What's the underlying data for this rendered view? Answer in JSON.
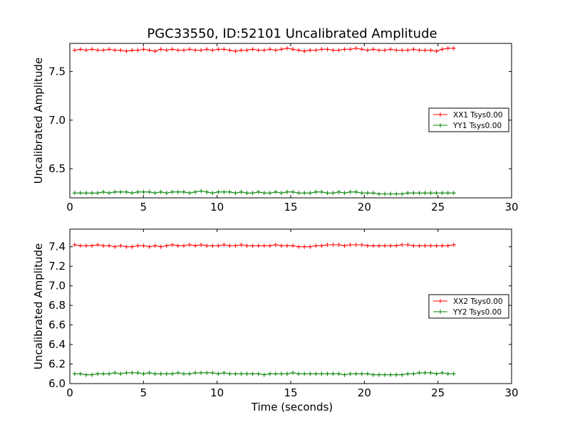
{
  "figure": {
    "title": "PGC33550, ID:52101 Uncalibrated Amplitude",
    "xlabel": "Time (seconds)"
  },
  "chart_data": [
    {
      "type": "line",
      "title": "PGC33550, ID:52101 Uncalibrated Amplitude",
      "xlabel": "",
      "ylabel": "Uncalibrated Amplitude",
      "xlim": [
        0,
        30
      ],
      "ylim": [
        6.2,
        7.79
      ],
      "xticks": [
        0,
        5,
        10,
        15,
        20,
        25,
        30
      ],
      "yticks": [
        6.5,
        7.0,
        7.5
      ],
      "grid": false,
      "legend_position": "center-right",
      "series": [
        {
          "name": "XX1 Tsys0.00",
          "color": "#ff0000",
          "marker": "plus",
          "x": [
            0.33,
            0.72,
            1.11,
            1.5,
            1.89,
            2.28,
            2.67,
            3.06,
            3.45,
            3.84,
            4.23,
            4.62,
            5.01,
            5.4,
            5.79,
            6.18,
            6.57,
            6.96,
            7.35,
            7.74,
            8.13,
            8.52,
            8.91,
            9.3,
            9.69,
            10.08,
            10.47,
            10.86,
            11.25,
            11.64,
            12.03,
            12.42,
            12.81,
            13.2,
            13.59,
            13.98,
            14.37,
            14.76,
            15.15,
            15.54,
            15.93,
            16.32,
            16.71,
            17.1,
            17.49,
            17.88,
            18.27,
            18.66,
            19.05,
            19.44,
            19.83,
            20.22,
            20.61,
            21.0,
            21.39,
            21.78,
            22.17,
            22.56,
            22.95,
            23.34,
            23.73,
            24.12,
            24.51,
            24.9,
            25.29,
            25.68,
            26.07
          ],
          "y": [
            7.72,
            7.73,
            7.72,
            7.73,
            7.72,
            7.72,
            7.73,
            7.72,
            7.72,
            7.71,
            7.72,
            7.72,
            7.73,
            7.72,
            7.71,
            7.73,
            7.72,
            7.73,
            7.72,
            7.72,
            7.73,
            7.72,
            7.72,
            7.73,
            7.72,
            7.73,
            7.73,
            7.72,
            7.71,
            7.72,
            7.72,
            7.73,
            7.72,
            7.72,
            7.73,
            7.72,
            7.73,
            7.74,
            7.73,
            7.72,
            7.71,
            7.72,
            7.72,
            7.73,
            7.73,
            7.72,
            7.72,
            7.73,
            7.73,
            7.74,
            7.73,
            7.72,
            7.73,
            7.72,
            7.72,
            7.73,
            7.72,
            7.72,
            7.72,
            7.73,
            7.72,
            7.72,
            7.72,
            7.71,
            7.73,
            7.74,
            7.74
          ]
        },
        {
          "name": "YY1 Tsys0.00",
          "color": "#008000",
          "marker": "plus",
          "x": [
            0.33,
            0.72,
            1.11,
            1.5,
            1.89,
            2.28,
            2.67,
            3.06,
            3.45,
            3.84,
            4.23,
            4.62,
            5.01,
            5.4,
            5.79,
            6.18,
            6.57,
            6.96,
            7.35,
            7.74,
            8.13,
            8.52,
            8.91,
            9.3,
            9.69,
            10.08,
            10.47,
            10.86,
            11.25,
            11.64,
            12.03,
            12.42,
            12.81,
            13.2,
            13.59,
            13.98,
            14.37,
            14.76,
            15.15,
            15.54,
            15.93,
            16.32,
            16.71,
            17.1,
            17.49,
            17.88,
            18.27,
            18.66,
            19.05,
            19.44,
            19.83,
            20.22,
            20.61,
            21.0,
            21.39,
            21.78,
            22.17,
            22.56,
            22.95,
            23.34,
            23.73,
            24.12,
            24.51,
            24.9,
            25.29,
            25.68,
            26.07
          ],
          "y": [
            6.25,
            6.25,
            6.25,
            6.25,
            6.25,
            6.26,
            6.25,
            6.26,
            6.26,
            6.26,
            6.25,
            6.26,
            6.26,
            6.26,
            6.25,
            6.26,
            6.25,
            6.26,
            6.26,
            6.26,
            6.25,
            6.26,
            6.27,
            6.26,
            6.25,
            6.26,
            6.26,
            6.26,
            6.25,
            6.26,
            6.25,
            6.25,
            6.26,
            6.25,
            6.25,
            6.26,
            6.25,
            6.26,
            6.26,
            6.25,
            6.25,
            6.25,
            6.26,
            6.26,
            6.25,
            6.25,
            6.26,
            6.25,
            6.26,
            6.26,
            6.25,
            6.25,
            6.25,
            6.24,
            6.24,
            6.24,
            6.24,
            6.24,
            6.25,
            6.25,
            6.25,
            6.25,
            6.25,
            6.25,
            6.25,
            6.25,
            6.25
          ]
        }
      ]
    },
    {
      "type": "line",
      "title": "",
      "xlabel": "Time (seconds)",
      "ylabel": "Uncalibrated Amplitude",
      "xlim": [
        0,
        30
      ],
      "ylim": [
        6.0,
        7.58
      ],
      "xticks": [
        0,
        5,
        10,
        15,
        20,
        25,
        30
      ],
      "yticks": [
        6.0,
        6.2,
        6.4,
        6.6,
        6.8,
        7.0,
        7.2,
        7.4
      ],
      "grid": false,
      "legend_position": "center-right",
      "series": [
        {
          "name": "XX2 Tsys0.00",
          "color": "#ff0000",
          "marker": "plus",
          "x": [
            0.33,
            0.72,
            1.11,
            1.5,
            1.89,
            2.28,
            2.67,
            3.06,
            3.45,
            3.84,
            4.23,
            4.62,
            5.01,
            5.4,
            5.79,
            6.18,
            6.57,
            6.96,
            7.35,
            7.74,
            8.13,
            8.52,
            8.91,
            9.3,
            9.69,
            10.08,
            10.47,
            10.86,
            11.25,
            11.64,
            12.03,
            12.42,
            12.81,
            13.2,
            13.59,
            13.98,
            14.37,
            14.76,
            15.15,
            15.54,
            15.93,
            16.32,
            16.71,
            17.1,
            17.49,
            17.88,
            18.27,
            18.66,
            19.05,
            19.44,
            19.83,
            20.22,
            20.61,
            21.0,
            21.39,
            21.78,
            22.17,
            22.56,
            22.95,
            23.34,
            23.73,
            24.12,
            24.51,
            24.9,
            25.29,
            25.68,
            26.07
          ],
          "y": [
            7.42,
            7.41,
            7.41,
            7.41,
            7.42,
            7.41,
            7.41,
            7.4,
            7.41,
            7.4,
            7.4,
            7.41,
            7.41,
            7.4,
            7.41,
            7.4,
            7.41,
            7.42,
            7.41,
            7.41,
            7.42,
            7.41,
            7.42,
            7.41,
            7.41,
            7.41,
            7.42,
            7.41,
            7.41,
            7.42,
            7.41,
            7.41,
            7.41,
            7.41,
            7.41,
            7.42,
            7.41,
            7.41,
            7.41,
            7.4,
            7.4,
            7.4,
            7.41,
            7.41,
            7.42,
            7.42,
            7.42,
            7.41,
            7.42,
            7.42,
            7.42,
            7.41,
            7.41,
            7.41,
            7.41,
            7.41,
            7.41,
            7.42,
            7.42,
            7.41,
            7.41,
            7.41,
            7.41,
            7.41,
            7.41,
            7.41,
            7.42
          ]
        },
        {
          "name": "YY2 Tsys0.00",
          "color": "#008000",
          "marker": "plus",
          "x": [
            0.33,
            0.72,
            1.11,
            1.5,
            1.89,
            2.28,
            2.67,
            3.06,
            3.45,
            3.84,
            4.23,
            4.62,
            5.01,
            5.4,
            5.79,
            6.18,
            6.57,
            6.96,
            7.35,
            7.74,
            8.13,
            8.52,
            8.91,
            9.3,
            9.69,
            10.08,
            10.47,
            10.86,
            11.25,
            11.64,
            12.03,
            12.42,
            12.81,
            13.2,
            13.59,
            13.98,
            14.37,
            14.76,
            15.15,
            15.54,
            15.93,
            16.32,
            16.71,
            17.1,
            17.49,
            17.88,
            18.27,
            18.66,
            19.05,
            19.44,
            19.83,
            20.22,
            20.61,
            21.0,
            21.39,
            21.78,
            22.17,
            22.56,
            22.95,
            23.34,
            23.73,
            24.12,
            24.51,
            24.9,
            25.29,
            25.68,
            26.07
          ],
          "y": [
            6.1,
            6.1,
            6.09,
            6.09,
            6.1,
            6.1,
            6.1,
            6.11,
            6.1,
            6.11,
            6.11,
            6.11,
            6.1,
            6.11,
            6.1,
            6.1,
            6.1,
            6.1,
            6.11,
            6.1,
            6.1,
            6.11,
            6.11,
            6.11,
            6.11,
            6.1,
            6.11,
            6.1,
            6.1,
            6.1,
            6.1,
            6.1,
            6.1,
            6.09,
            6.1,
            6.1,
            6.1,
            6.1,
            6.11,
            6.1,
            6.1,
            6.1,
            6.1,
            6.1,
            6.1,
            6.1,
            6.1,
            6.09,
            6.1,
            6.1,
            6.1,
            6.1,
            6.09,
            6.09,
            6.09,
            6.09,
            6.09,
            6.09,
            6.1,
            6.1,
            6.11,
            6.11,
            6.11,
            6.1,
            6.11,
            6.1,
            6.1
          ]
        }
      ]
    }
  ]
}
